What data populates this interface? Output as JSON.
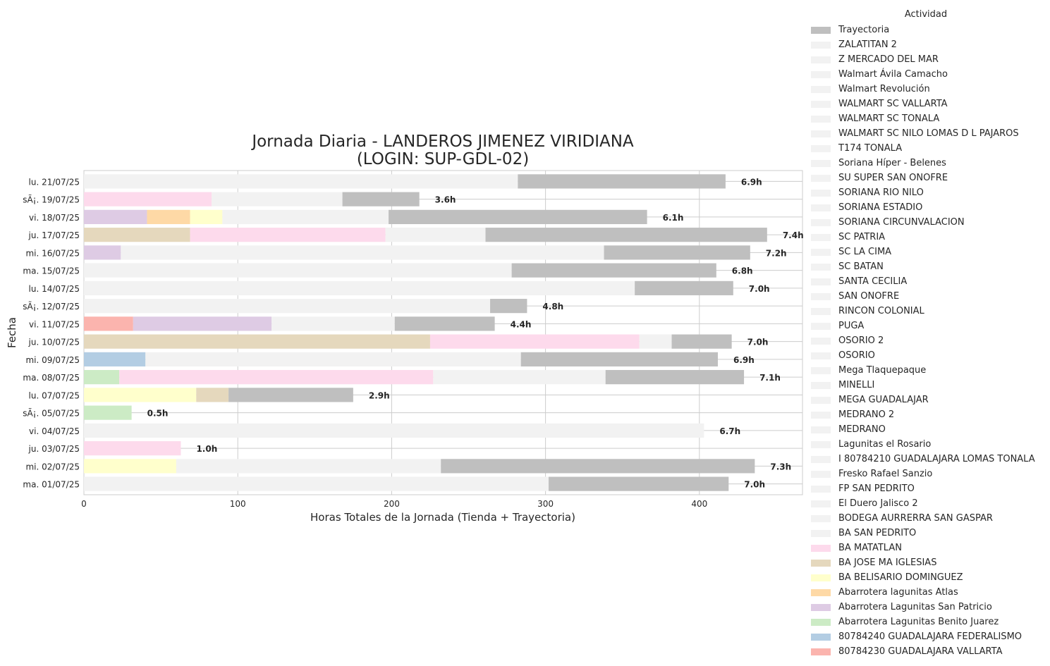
{
  "chart_data": {
    "type": "bar",
    "orientation": "horizontal",
    "stacked": true,
    "title": "Jornada Diaria - LANDEROS JIMENEZ VIRIDIANA\n(LOGIN: SUP-GDL-02)",
    "xlabel": "Horas Totales de la Jornada (Tienda + Trayectoria)",
    "ylabel": "Fecha",
    "xlim": [
      0,
      467
    ],
    "xticks": [
      0,
      100,
      200,
      300,
      400
    ],
    "grid": true,
    "legend": {
      "title": "Actividad",
      "placement": "outside-right"
    },
    "colors": {
      "trayectoria": "#bfbfbf",
      "generic_store": "#f2f2f2",
      "BA MATATLAN": "#fddaec",
      "BA JOSE MA IGLESIAS": "#e5d8bd",
      "BA BELISARIO DOMINGUEZ": "#ffffcc",
      "Abarrotera lagunitas Atlas": "#fed9a6",
      "Abarrotera Lagunitas San Patricio": "#decbe4",
      "Abarrotera Lagunitas Benito Juarez": "#ccebc5",
      "80784240 GUADALAJARA FEDERALISMO": "#b3cde3",
      "80784230 GUADALAJARA VALLARTA": "#fbb4ae"
    },
    "legend_entries": [
      {
        "name": "Trayectoria",
        "color": "#bfbfbf"
      },
      {
        "name": "ZALATITAN 2",
        "color": "#f2f2f2"
      },
      {
        "name": "Z MERCADO DEL MAR",
        "color": "#f2f2f2"
      },
      {
        "name": "Walmart Ávila Camacho",
        "color": "#f2f2f2"
      },
      {
        "name": "Walmart Revolución",
        "color": "#f2f2f2"
      },
      {
        "name": "WALMART SC VALLARTA",
        "color": "#f2f2f2"
      },
      {
        "name": "WALMART SC TONALA",
        "color": "#f2f2f2"
      },
      {
        "name": "WALMART SC NILO LOMAS D L PAJAROS",
        "color": "#f2f2f2"
      },
      {
        "name": "T174 TONALA",
        "color": "#f2f2f2"
      },
      {
        "name": "Soriana Híper - Belenes",
        "color": "#f2f2f2"
      },
      {
        "name": "SU SUPER SAN ONOFRE",
        "color": "#f2f2f2"
      },
      {
        "name": "SORIANA RIO NILO",
        "color": "#f2f2f2"
      },
      {
        "name": "SORIANA ESTADIO",
        "color": "#f2f2f2"
      },
      {
        "name": "SORIANA CIRCUNVALACION",
        "color": "#f2f2f2"
      },
      {
        "name": "SC PATRIA",
        "color": "#f2f2f2"
      },
      {
        "name": "SC LA CIMA",
        "color": "#f2f2f2"
      },
      {
        "name": "SC BATAN",
        "color": "#f2f2f2"
      },
      {
        "name": "SANTA CECILIA",
        "color": "#f2f2f2"
      },
      {
        "name": "SAN ONOFRE",
        "color": "#f2f2f2"
      },
      {
        "name": "RINCON COLONIAL",
        "color": "#f2f2f2"
      },
      {
        "name": "PUGA",
        "color": "#f2f2f2"
      },
      {
        "name": "OSORIO 2",
        "color": "#f2f2f2"
      },
      {
        "name": "OSORIO",
        "color": "#f2f2f2"
      },
      {
        "name": "Mega Tlaquepaque",
        "color": "#f2f2f2"
      },
      {
        "name": "MINELLI",
        "color": "#f2f2f2"
      },
      {
        "name": "MEGA GUADALAJAR",
        "color": "#f2f2f2"
      },
      {
        "name": "MEDRANO 2",
        "color": "#f2f2f2"
      },
      {
        "name": "MEDRANO",
        "color": "#f2f2f2"
      },
      {
        "name": "Lagunitas el Rosario",
        "color": "#f2f2f2"
      },
      {
        "name": "I 80784210 GUADALAJARA LOMAS TONALA",
        "color": "#f2f2f2"
      },
      {
        "name": "Fresko Rafael Sanzio",
        "color": "#f2f2f2"
      },
      {
        "name": "FP SAN PEDRITO",
        "color": "#f2f2f2"
      },
      {
        "name": "El Duero Jalisco 2",
        "color": "#f2f2f2"
      },
      {
        "name": "BODEGA AURRERRA SAN GASPAR",
        "color": "#f2f2f2"
      },
      {
        "name": "BA SAN PEDRITO",
        "color": "#f2f2f2"
      },
      {
        "name": "BA MATATLAN",
        "color": "#fddaec"
      },
      {
        "name": "BA JOSE MA IGLESIAS",
        "color": "#e5d8bd"
      },
      {
        "name": "BA BELISARIO DOMINGUEZ",
        "color": "#ffffcc"
      },
      {
        "name": "Abarrotera lagunitas Atlas",
        "color": "#fed9a6"
      },
      {
        "name": "Abarrotera Lagunitas San Patricio",
        "color": "#decbe4"
      },
      {
        "name": "Abarrotera Lagunitas Benito Juarez",
        "color": "#ccebc5"
      },
      {
        "name": "80784240 GUADALAJARA FEDERALISMO",
        "color": "#b3cde3"
      },
      {
        "name": "80784230 GUADALAJARA VALLARTA",
        "color": "#fbb4ae"
      }
    ],
    "rows": [
      {
        "date": "lu. 21/07/25",
        "total_label": "6.9h",
        "segments": [
          {
            "activity": "store",
            "color": "#f2f2f2",
            "value": 282
          },
          {
            "activity": "Trayectoria",
            "color": "#bfbfbf",
            "value": 135
          }
        ]
      },
      {
        "date": "sÃ¡. 19/07/25",
        "total_label": "3.6h",
        "segments": [
          {
            "activity": "BA MATATLAN",
            "color": "#fddaec",
            "value": 83
          },
          {
            "activity": "store",
            "color": "#f2f2f2",
            "value": 85
          },
          {
            "activity": "Trayectoria",
            "color": "#bfbfbf",
            "value": 50
          }
        ]
      },
      {
        "date": "vi. 18/07/25",
        "total_label": "6.1h",
        "segments": [
          {
            "activity": "Abarrotera Lagunitas San Patricio",
            "color": "#decbe4",
            "value": 41
          },
          {
            "activity": "Abarrotera lagunitas Atlas",
            "color": "#fed9a6",
            "value": 28
          },
          {
            "activity": "BA BELISARIO DOMINGUEZ",
            "color": "#ffffcc",
            "value": 21
          },
          {
            "activity": "store",
            "color": "#f2f2f2",
            "value": 108
          },
          {
            "activity": "Trayectoria",
            "color": "#bfbfbf",
            "value": 168
          }
        ]
      },
      {
        "date": "ju. 17/07/25",
        "total_label": "7.4h",
        "segments": [
          {
            "activity": "BA JOSE MA IGLESIAS",
            "color": "#e5d8bd",
            "value": 69
          },
          {
            "activity": "BA MATATLAN",
            "color": "#fddaec",
            "value": 127
          },
          {
            "activity": "store",
            "color": "#f2f2f2",
            "value": 65
          },
          {
            "activity": "Trayectoria",
            "color": "#bfbfbf",
            "value": 183
          }
        ]
      },
      {
        "date": "mi. 16/07/25",
        "total_label": "7.2h",
        "segments": [
          {
            "activity": "Abarrotera Lagunitas San Patricio",
            "color": "#decbe4",
            "value": 24
          },
          {
            "activity": "store",
            "color": "#f2f2f2",
            "value": 314
          },
          {
            "activity": "Trayectoria",
            "color": "#bfbfbf",
            "value": 95
          }
        ]
      },
      {
        "date": "ma. 15/07/25",
        "total_label": "6.8h",
        "segments": [
          {
            "activity": "store",
            "color": "#f2f2f2",
            "value": 278
          },
          {
            "activity": "Trayectoria",
            "color": "#bfbfbf",
            "value": 133
          }
        ]
      },
      {
        "date": "lu. 14/07/25",
        "total_label": "7.0h",
        "segments": [
          {
            "activity": "store",
            "color": "#f2f2f2",
            "value": 358
          },
          {
            "activity": "Trayectoria",
            "color": "#bfbfbf",
            "value": 64
          }
        ]
      },
      {
        "date": "sÃ¡. 12/07/25",
        "total_label": "4.8h",
        "segments": [
          {
            "activity": "store",
            "color": "#f2f2f2",
            "value": 264
          },
          {
            "activity": "Trayectoria",
            "color": "#bfbfbf",
            "value": 24
          }
        ]
      },
      {
        "date": "vi. 11/07/25",
        "total_label": "4.4h",
        "segments": [
          {
            "activity": "80784230 GUADALAJARA VALLARTA",
            "color": "#fbb4ae",
            "value": 32
          },
          {
            "activity": "Abarrotera Lagunitas San Patricio",
            "color": "#decbe4",
            "value": 90
          },
          {
            "activity": "store",
            "color": "#f2f2f2",
            "value": 80
          },
          {
            "activity": "Trayectoria",
            "color": "#bfbfbf",
            "value": 65
          }
        ]
      },
      {
        "date": "ju. 10/07/25",
        "total_label": "7.0h",
        "segments": [
          {
            "activity": "BA JOSE MA IGLESIAS",
            "color": "#e5d8bd",
            "value": 225
          },
          {
            "activity": "BA MATATLAN",
            "color": "#fddaec",
            "value": 136
          },
          {
            "activity": "store",
            "color": "#f2f2f2",
            "value": 21
          },
          {
            "activity": "Trayectoria",
            "color": "#bfbfbf",
            "value": 39
          }
        ]
      },
      {
        "date": "mi. 09/07/25",
        "total_label": "6.9h",
        "segments": [
          {
            "activity": "80784240 GUADALAJARA FEDERALISMO",
            "color": "#b3cde3",
            "value": 40
          },
          {
            "activity": "store",
            "color": "#f2f2f2",
            "value": 244
          },
          {
            "activity": "Trayectoria",
            "color": "#bfbfbf",
            "value": 128
          }
        ]
      },
      {
        "date": "ma. 08/07/25",
        "total_label": "7.1h",
        "segments": [
          {
            "activity": "Abarrotera Lagunitas Benito Juarez",
            "color": "#ccebc5",
            "value": 23
          },
          {
            "activity": "BA MATATLAN",
            "color": "#fddaec",
            "value": 204
          },
          {
            "activity": "store",
            "color": "#f2f2f2",
            "value": 112
          },
          {
            "activity": "Trayectoria",
            "color": "#bfbfbf",
            "value": 90
          }
        ]
      },
      {
        "date": "lu. 07/07/25",
        "total_label": "2.9h",
        "segments": [
          {
            "activity": "BA BELISARIO DOMINGUEZ",
            "color": "#ffffcc",
            "value": 73
          },
          {
            "activity": "BA JOSE MA IGLESIAS",
            "color": "#e5d8bd",
            "value": 21
          },
          {
            "activity": "Trayectoria",
            "color": "#bfbfbf",
            "value": 81
          }
        ]
      },
      {
        "date": "sÃ¡. 05/07/25",
        "total_label": "0.5h",
        "segments": [
          {
            "activity": "Abarrotera Lagunitas Benito Juarez",
            "color": "#ccebc5",
            "value": 31
          }
        ]
      },
      {
        "date": "vi. 04/07/25",
        "total_label": "6.7h",
        "segments": [
          {
            "activity": "store",
            "color": "#f2f2f2",
            "value": 403
          }
        ]
      },
      {
        "date": "ju. 03/07/25",
        "total_label": "1.0h",
        "segments": [
          {
            "activity": "BA MATATLAN",
            "color": "#fddaec",
            "value": 63
          }
        ]
      },
      {
        "date": "mi. 02/07/25",
        "total_label": "7.3h",
        "segments": [
          {
            "activity": "BA BELISARIO DOMINGUEZ",
            "color": "#ffffcc",
            "value": 60
          },
          {
            "activity": "store",
            "color": "#f2f2f2",
            "value": 172
          },
          {
            "activity": "Trayectoria",
            "color": "#bfbfbf",
            "value": 204
          }
        ]
      },
      {
        "date": "ma. 01/07/25",
        "total_label": "7.0h",
        "segments": [
          {
            "activity": "store",
            "color": "#f2f2f2",
            "value": 302
          },
          {
            "activity": "Trayectoria",
            "color": "#bfbfbf",
            "value": 117
          }
        ]
      }
    ]
  }
}
